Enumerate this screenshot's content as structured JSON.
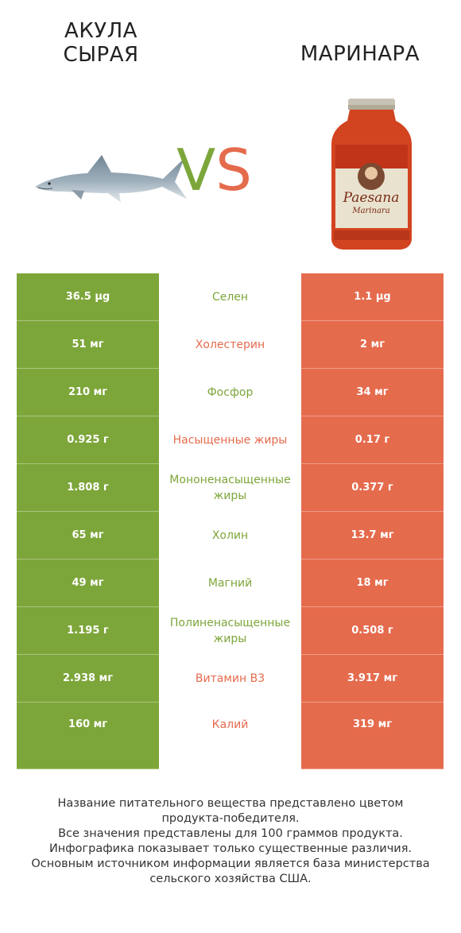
{
  "header": {
    "left_title_line1": "АКУЛА",
    "left_title_line2": "СЫРАЯ",
    "right_title": "МАРИНАРА",
    "vs_v": "V",
    "vs_s": "S"
  },
  "colors": {
    "left": "#7da63a",
    "right": "#e56b4d"
  },
  "rows": [
    {
      "left": "36.5 µg",
      "nutrient": "Селен",
      "right": "1.1 µg",
      "winner": "left"
    },
    {
      "left": "51 мг",
      "nutrient": "Холестерин",
      "right": "2 мг",
      "winner": "right"
    },
    {
      "left": "210 мг",
      "nutrient": "Фосфор",
      "right": "34 мг",
      "winner": "left"
    },
    {
      "left": "0.925 г",
      "nutrient": "Насыщенные жиры",
      "right": "0.17 г",
      "winner": "right"
    },
    {
      "left": "1.808 г",
      "nutrient": "Мононенасыщенные жиры",
      "right": "0.377 г",
      "winner": "left"
    },
    {
      "left": "65 мг",
      "nutrient": "Холин",
      "right": "13.7 мг",
      "winner": "left"
    },
    {
      "left": "49 мг",
      "nutrient": "Магний",
      "right": "18 мг",
      "winner": "left"
    },
    {
      "left": "1.195 г",
      "nutrient": "Полиненасыщенные жиры",
      "right": "0.508 г",
      "winner": "left"
    },
    {
      "left": "2.938 мг",
      "nutrient": "Витамин B3",
      "right": "3.917 мг",
      "winner": "right"
    },
    {
      "left": "160 мг",
      "nutrient": "Калий",
      "right": "319 мг",
      "winner": "right"
    }
  ],
  "footer": {
    "line1": "Название питательного вещества представлено цветом",
    "line2": "продукта-победителя.",
    "line3": "Все значения представлены для 100 граммов продукта.",
    "line4": "Инфографика показывает только существенные различия.",
    "line5": "Основным источником информации является база министерства",
    "line6": "сельского хозяйства США."
  }
}
